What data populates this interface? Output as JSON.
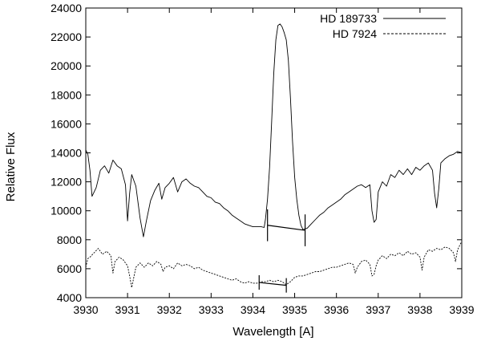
{
  "chart_data": {
    "type": "line",
    "title": "",
    "xlabel": "Wavelength [A]",
    "ylabel": "Relative Flux",
    "xlim": [
      3930,
      3939
    ],
    "ylim": [
      4000,
      24000
    ],
    "xticks": [
      "3930",
      "3931",
      "3932",
      "3933",
      "3934",
      "3935",
      "3936",
      "3937",
      "3938",
      "3939"
    ],
    "yticks": [
      "4000",
      "6000",
      "8000",
      "10000",
      "12000",
      "14000",
      "16000",
      "18000",
      "20000",
      "22000",
      "24000"
    ],
    "grid": false,
    "legend_position": "top-right",
    "series": [
      {
        "name": "HD 189733",
        "style": "solid",
        "color": "#000000",
        "points": [
          [
            3930.0,
            14200
          ],
          [
            3930.05,
            13900
          ],
          [
            3930.1,
            12800
          ],
          [
            3930.15,
            11000
          ],
          [
            3930.25,
            11600
          ],
          [
            3930.35,
            12800
          ],
          [
            3930.45,
            13100
          ],
          [
            3930.55,
            12600
          ],
          [
            3930.65,
            13500
          ],
          [
            3930.75,
            13100
          ],
          [
            3930.85,
            12900
          ],
          [
            3930.95,
            11800
          ],
          [
            3931.0,
            9300
          ],
          [
            3931.05,
            11200
          ],
          [
            3931.1,
            12500
          ],
          [
            3931.2,
            11700
          ],
          [
            3931.3,
            9500
          ],
          [
            3931.38,
            8200
          ],
          [
            3931.45,
            9300
          ],
          [
            3931.55,
            10700
          ],
          [
            3931.65,
            11400
          ],
          [
            3931.75,
            11900
          ],
          [
            3931.82,
            10800
          ],
          [
            3931.9,
            11600
          ],
          [
            3932.0,
            11900
          ],
          [
            3932.1,
            12300
          ],
          [
            3932.2,
            11300
          ],
          [
            3932.3,
            12000
          ],
          [
            3932.4,
            12200
          ],
          [
            3932.5,
            11900
          ],
          [
            3932.6,
            11700
          ],
          [
            3932.7,
            11600
          ],
          [
            3932.8,
            11300
          ],
          [
            3932.9,
            11000
          ],
          [
            3933.0,
            10900
          ],
          [
            3933.1,
            10600
          ],
          [
            3933.2,
            10500
          ],
          [
            3933.3,
            10200
          ],
          [
            3933.4,
            10000
          ],
          [
            3933.5,
            9700
          ],
          [
            3933.6,
            9500
          ],
          [
            3933.7,
            9300
          ],
          [
            3933.8,
            9100
          ],
          [
            3933.9,
            9000
          ],
          [
            3934.0,
            8900
          ],
          [
            3934.1,
            8900
          ],
          [
            3934.2,
            8900
          ],
          [
            3934.27,
            8850
          ],
          [
            3934.3,
            9400
          ],
          [
            3934.35,
            10800
          ],
          [
            3934.4,
            13000
          ],
          [
            3934.45,
            16200
          ],
          [
            3934.5,
            19500
          ],
          [
            3934.55,
            21800
          ],
          [
            3934.6,
            22800
          ],
          [
            3934.65,
            22900
          ],
          [
            3934.7,
            22700
          ],
          [
            3934.75,
            22300
          ],
          [
            3934.8,
            21800
          ],
          [
            3934.85,
            20400
          ],
          [
            3934.9,
            17800
          ],
          [
            3934.95,
            14800
          ],
          [
            3935.0,
            12300
          ],
          [
            3935.05,
            10800
          ],
          [
            3935.1,
            9700
          ],
          [
            3935.15,
            9000
          ],
          [
            3935.2,
            8700
          ],
          [
            3935.3,
            8800
          ],
          [
            3935.4,
            9100
          ],
          [
            3935.5,
            9400
          ],
          [
            3935.6,
            9700
          ],
          [
            3935.7,
            9900
          ],
          [
            3935.8,
            10200
          ],
          [
            3935.9,
            10400
          ],
          [
            3936.0,
            10600
          ],
          [
            3936.1,
            10800
          ],
          [
            3936.2,
            11100
          ],
          [
            3936.3,
            11300
          ],
          [
            3936.4,
            11500
          ],
          [
            3936.5,
            11700
          ],
          [
            3936.6,
            11800
          ],
          [
            3936.7,
            11600
          ],
          [
            3936.8,
            11800
          ],
          [
            3936.85,
            10000
          ],
          [
            3936.9,
            9200
          ],
          [
            3936.95,
            9400
          ],
          [
            3937.0,
            11300
          ],
          [
            3937.1,
            12000
          ],
          [
            3937.2,
            11700
          ],
          [
            3937.3,
            12500
          ],
          [
            3937.4,
            12300
          ],
          [
            3937.5,
            12800
          ],
          [
            3937.6,
            12500
          ],
          [
            3937.7,
            12900
          ],
          [
            3937.8,
            12500
          ],
          [
            3937.9,
            13000
          ],
          [
            3938.0,
            12800
          ],
          [
            3938.1,
            13100
          ],
          [
            3938.2,
            13300
          ],
          [
            3938.3,
            12800
          ],
          [
            3938.35,
            11200
          ],
          [
            3938.4,
            10200
          ],
          [
            3938.45,
            11500
          ],
          [
            3938.5,
            13300
          ],
          [
            3938.6,
            13600
          ],
          [
            3938.7,
            13800
          ],
          [
            3938.8,
            13900
          ],
          [
            3938.9,
            14100
          ],
          [
            3939.0,
            14000
          ]
        ]
      },
      {
        "name": "HD 7924",
        "style": "dashed",
        "color": "#000000",
        "points": [
          [
            3930.0,
            6100
          ],
          [
            3930.05,
            6700
          ],
          [
            3930.1,
            6800
          ],
          [
            3930.2,
            7100
          ],
          [
            3930.3,
            7400
          ],
          [
            3930.4,
            7000
          ],
          [
            3930.5,
            7200
          ],
          [
            3930.6,
            6900
          ],
          [
            3930.65,
            5700
          ],
          [
            3930.7,
            6500
          ],
          [
            3930.8,
            6800
          ],
          [
            3930.9,
            6600
          ],
          [
            3931.0,
            6200
          ],
          [
            3931.05,
            5500
          ],
          [
            3931.1,
            4700
          ],
          [
            3931.15,
            5400
          ],
          [
            3931.2,
            6100
          ],
          [
            3931.3,
            6400
          ],
          [
            3931.4,
            6100
          ],
          [
            3931.5,
            6400
          ],
          [
            3931.6,
            6200
          ],
          [
            3931.7,
            6500
          ],
          [
            3931.8,
            6300
          ],
          [
            3931.85,
            5800
          ],
          [
            3931.9,
            6100
          ],
          [
            3932.0,
            6200
          ],
          [
            3932.1,
            6000
          ],
          [
            3932.2,
            6400
          ],
          [
            3932.3,
            6200
          ],
          [
            3932.4,
            6300
          ],
          [
            3932.5,
            6200
          ],
          [
            3932.6,
            6000
          ],
          [
            3932.7,
            6100
          ],
          [
            3932.8,
            5900
          ],
          [
            3932.9,
            5800
          ],
          [
            3933.0,
            5700
          ],
          [
            3933.1,
            5600
          ],
          [
            3933.2,
            5500
          ],
          [
            3933.3,
            5400
          ],
          [
            3933.4,
            5300
          ],
          [
            3933.5,
            5200
          ],
          [
            3933.6,
            5300
          ],
          [
            3933.7,
            5100
          ],
          [
            3933.8,
            5000
          ],
          [
            3933.9,
            5100
          ],
          [
            3934.0,
            5000
          ],
          [
            3934.1,
            5000
          ],
          [
            3934.2,
            5100
          ],
          [
            3934.3,
            5100
          ],
          [
            3934.4,
            5200
          ],
          [
            3934.5,
            5100
          ],
          [
            3934.6,
            5200
          ],
          [
            3934.7,
            5100
          ],
          [
            3934.8,
            4900
          ],
          [
            3934.9,
            5100
          ],
          [
            3935.0,
            5400
          ],
          [
            3935.1,
            5500
          ],
          [
            3935.2,
            5500
          ],
          [
            3935.3,
            5600
          ],
          [
            3935.4,
            5700
          ],
          [
            3935.5,
            5800
          ],
          [
            3935.6,
            5800
          ],
          [
            3935.7,
            5900
          ],
          [
            3935.8,
            6000
          ],
          [
            3935.9,
            6100
          ],
          [
            3936.0,
            6100
          ],
          [
            3936.1,
            6200
          ],
          [
            3936.2,
            6300
          ],
          [
            3936.3,
            6400
          ],
          [
            3936.4,
            6300
          ],
          [
            3936.45,
            5700
          ],
          [
            3936.5,
            6100
          ],
          [
            3936.6,
            6500
          ],
          [
            3936.7,
            6600
          ],
          [
            3936.8,
            6300
          ],
          [
            3936.85,
            5500
          ],
          [
            3936.9,
            5600
          ],
          [
            3936.95,
            6200
          ],
          [
            3937.0,
            6600
          ],
          [
            3937.1,
            6900
          ],
          [
            3937.2,
            6700
          ],
          [
            3937.3,
            7000
          ],
          [
            3937.4,
            6900
          ],
          [
            3937.5,
            7100
          ],
          [
            3937.6,
            6900
          ],
          [
            3937.7,
            7200
          ],
          [
            3937.8,
            7000
          ],
          [
            3937.9,
            7100
          ],
          [
            3938.0,
            6800
          ],
          [
            3938.05,
            5900
          ],
          [
            3938.1,
            6800
          ],
          [
            3938.2,
            7300
          ],
          [
            3938.3,
            7200
          ],
          [
            3938.4,
            7400
          ],
          [
            3938.5,
            7300
          ],
          [
            3938.6,
            7500
          ],
          [
            3938.7,
            7400
          ],
          [
            3938.8,
            7100
          ],
          [
            3938.85,
            6500
          ],
          [
            3938.9,
            7300
          ],
          [
            3939.0,
            7900
          ]
        ]
      }
    ],
    "annotations": [
      {
        "type": "bracket",
        "series": "HD 189733",
        "x": [
          3934.35,
          3935.25
        ],
        "y": [
          9000,
          8650
        ],
        "tick_half_height": 1100
      },
      {
        "type": "bracket",
        "series": "HD 7924",
        "x": [
          3934.15,
          3934.8
        ],
        "y": [
          5050,
          4850
        ],
        "tick_half_height": 500
      }
    ]
  }
}
